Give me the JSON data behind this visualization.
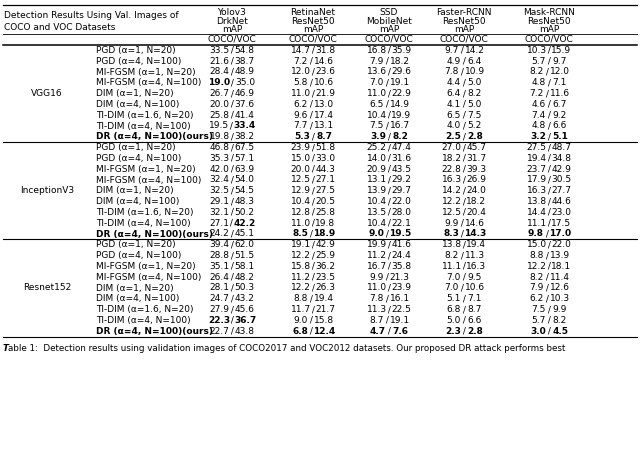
{
  "col_headers_lines": [
    [
      "Yolov3",
      "DrkNet",
      "mAP"
    ],
    [
      "RetinaNet",
      "ResNet50",
      "mAP"
    ],
    [
      "SSD",
      "MobileNet",
      "mAP"
    ],
    [
      "Faster-RCNN",
      "ResNet50",
      "mAP"
    ],
    [
      "Mask-RCNN",
      "ResNet50",
      "mAP"
    ]
  ],
  "sections": [
    {
      "model": "VGG16",
      "rows": [
        {
          "method": "PGD (α=1, N=20)",
          "vals": [
            "33.5 / 54.8",
            "14.7 / 31.8",
            "16.8 / 35.9",
            "9.7 / 14.2",
            "10.3 / 15.9"
          ],
          "bold_left": [
            false,
            false,
            false,
            false,
            false
          ],
          "bold_right": [
            false,
            false,
            false,
            false,
            false
          ],
          "ours": false
        },
        {
          "method": "PGD (α=4, N=100)",
          "vals": [
            "21.6 / 38.7",
            "7.2 / 14.6",
            "7.9 / 18.2",
            "4.9 / 6.4",
            "5.7 / 9.7"
          ],
          "bold_left": [
            false,
            false,
            false,
            false,
            false
          ],
          "bold_right": [
            false,
            false,
            false,
            false,
            false
          ],
          "ours": false
        },
        {
          "method": "MI-FGSM (α=1, N=20)",
          "vals": [
            "28.4 / 48.9",
            "12.0 / 23.6",
            "13.6 / 29.6",
            "7.8 / 10.9",
            "8.2 / 12.0"
          ],
          "bold_left": [
            false,
            false,
            false,
            false,
            false
          ],
          "bold_right": [
            false,
            false,
            false,
            false,
            false
          ],
          "ours": false
        },
        {
          "method": "MI-FGSM (α=4, N=100)",
          "vals": [
            "19.0 / 35.0",
            "5.8 / 10.6",
            "7.0 / 19.1",
            "4.4 / 5.0",
            "4.8 / 7.1"
          ],
          "bold_left": [
            true,
            false,
            false,
            false,
            false
          ],
          "bold_right": [
            false,
            false,
            false,
            false,
            false
          ],
          "ours": false
        },
        {
          "method": "DIM (α=1, N=20)",
          "vals": [
            "26.7 / 46.9",
            "11.0 / 21.9",
            "11.0 / 22.9",
            "6.4 / 8.2",
            "7.2 / 11.6"
          ],
          "bold_left": [
            false,
            false,
            false,
            false,
            false
          ],
          "bold_right": [
            false,
            false,
            false,
            false,
            false
          ],
          "ours": false
        },
        {
          "method": "DIM (α=4, N=100)",
          "vals": [
            "20.0 / 37.6",
            "6.2 / 13.0",
            "6.5 / 14.9",
            "4.1 / 5.0",
            "4.6 / 6.7"
          ],
          "bold_left": [
            false,
            false,
            false,
            false,
            false
          ],
          "bold_right": [
            false,
            false,
            false,
            false,
            false
          ],
          "ours": false
        },
        {
          "method": "TI-DIM (α=1.6, N=20)",
          "vals": [
            "25.8 / 41.4",
            "9.6 / 17.4",
            "10.4 / 19.9",
            "6.5 / 7.5",
            "7.4 / 9.2"
          ],
          "bold_left": [
            false,
            false,
            false,
            false,
            false
          ],
          "bold_right": [
            false,
            false,
            false,
            false,
            false
          ],
          "ours": false
        },
        {
          "method": "TI-DIM (α=4, N=100)",
          "vals": [
            "19.5 / 33.4",
            "7.7 / 13.1",
            "7.5 / 16.7",
            "4.0 / 5.2",
            "4.8 / 6.6"
          ],
          "bold_left": [
            false,
            false,
            false,
            false,
            false
          ],
          "bold_right": [
            true,
            false,
            false,
            false,
            false
          ],
          "ours": false
        },
        {
          "method": "DR (α=4, N=100)(ours)",
          "vals": [
            "19.8 / 38.2",
            "5.3 / 8.7",
            "3.9 / 8.2",
            "2.5 / 2.8",
            "3.2 / 5.1"
          ],
          "bold_left": [
            false,
            true,
            true,
            true,
            true
          ],
          "bold_right": [
            false,
            true,
            true,
            true,
            true
          ],
          "ours": true
        }
      ]
    },
    {
      "model": "InceptionV3",
      "rows": [
        {
          "method": "PGD (α=1, N=20)",
          "vals": [
            "46.8 / 67.5",
            "23.9 / 51.8",
            "25.2 / 47.4",
            "27.0 / 45.7",
            "27.5 / 48.7"
          ],
          "bold_left": [
            false,
            false,
            false,
            false,
            false
          ],
          "bold_right": [
            false,
            false,
            false,
            false,
            false
          ],
          "ours": false
        },
        {
          "method": "PGD (α=4, N=100)",
          "vals": [
            "35.3 / 57.1",
            "15.0 / 33.0",
            "14.0 / 31.6",
            "18.2 / 31.7",
            "19.4 / 34.8"
          ],
          "bold_left": [
            false,
            false,
            false,
            false,
            false
          ],
          "bold_right": [
            false,
            false,
            false,
            false,
            false
          ],
          "ours": false
        },
        {
          "method": "MI-FGSM (α=1, N=20)",
          "vals": [
            "42.0 / 63.9",
            "20.0 / 44.3",
            "20.9 / 43.5",
            "22.8 / 39.3",
            "23.7 / 42.9"
          ],
          "bold_left": [
            false,
            false,
            false,
            false,
            false
          ],
          "bold_right": [
            false,
            false,
            false,
            false,
            false
          ],
          "ours": false
        },
        {
          "method": "MI-FGSM (α=4, N=100)",
          "vals": [
            "32.4 / 54.0",
            "12.5 / 27.1",
            "13.1 / 29.2",
            "16.3 / 26.9",
            "17.9 / 30.5"
          ],
          "bold_left": [
            false,
            false,
            false,
            false,
            false
          ],
          "bold_right": [
            false,
            false,
            false,
            false,
            false
          ],
          "ours": false
        },
        {
          "method": "DIM (α=1, N=20)",
          "vals": [
            "32.5 / 54.5",
            "12.9 / 27.5",
            "13.9 / 29.7",
            "14.2 / 24.0",
            "16.3 / 27.7"
          ],
          "bold_left": [
            false,
            false,
            false,
            false,
            false
          ],
          "bold_right": [
            false,
            false,
            false,
            false,
            false
          ],
          "ours": false
        },
        {
          "method": "DIM (α=4, N=100)",
          "vals": [
            "29.1 / 48.3",
            "10.4 / 20.5",
            "10.4 / 22.0",
            "12.2 / 18.2",
            "13.8 / 44.6"
          ],
          "bold_left": [
            false,
            false,
            false,
            false,
            false
          ],
          "bold_right": [
            false,
            false,
            false,
            false,
            false
          ],
          "ours": false
        },
        {
          "method": "TI-DIM (α=1.6, N=20)",
          "vals": [
            "32.1 / 50.2",
            "12.8 / 25.8",
            "13.5 / 28.0",
            "12.5 / 20.4",
            "14.4 / 23.0"
          ],
          "bold_left": [
            false,
            false,
            false,
            false,
            false
          ],
          "bold_right": [
            false,
            false,
            false,
            false,
            false
          ],
          "ours": false
        },
        {
          "method": "TI-DIM (α=4, N=100)",
          "vals": [
            "27.1 / 42.2",
            "11.0 / 19.8",
            "10.4 / 22.1",
            "9.9 / 14.6",
            "11.1 / 17.5"
          ],
          "bold_left": [
            false,
            false,
            false,
            false,
            false
          ],
          "bold_right": [
            true,
            false,
            false,
            false,
            false
          ],
          "ours": false
        },
        {
          "method": "DR (α=4, N=100)(ours)",
          "vals": [
            "24.2 / 45.1",
            "8.5 / 18.9",
            "9.0 / 19.5",
            "8.3 / 14.3",
            "9.8 / 17.0"
          ],
          "bold_left": [
            false,
            true,
            true,
            true,
            true
          ],
          "bold_right": [
            false,
            true,
            true,
            true,
            true
          ],
          "ours": true
        }
      ]
    },
    {
      "model": "Resnet152",
      "rows": [
        {
          "method": "PGD (α=1, N=20)",
          "vals": [
            "39.4 / 62.0",
            "19.1 / 42.9",
            "19.9 / 41.6",
            "13.8 / 19.4",
            "15.0 / 22.0"
          ],
          "bold_left": [
            false,
            false,
            false,
            false,
            false
          ],
          "bold_right": [
            false,
            false,
            false,
            false,
            false
          ],
          "ours": false
        },
        {
          "method": "PGD (α=4, N=100)",
          "vals": [
            "28.8 / 51.5",
            "12.2 / 25.9",
            "11.2 / 24.4",
            "8.2 / 11.3",
            "8.8 / 13.9"
          ],
          "bold_left": [
            false,
            false,
            false,
            false,
            false
          ],
          "bold_right": [
            false,
            false,
            false,
            false,
            false
          ],
          "ours": false
        },
        {
          "method": "MI-FGSM (α=1, N=20)",
          "vals": [
            "35.1 / 58.1",
            "15.8 / 36.2",
            "16.7 / 35.8",
            "11.1 / 16.3",
            "12.2 / 18.1"
          ],
          "bold_left": [
            false,
            false,
            false,
            false,
            false
          ],
          "bold_right": [
            false,
            false,
            false,
            false,
            false
          ],
          "ours": false
        },
        {
          "method": "MI-FGSM (α=4, N=100)",
          "vals": [
            "26.4 / 48.2",
            "11.2 / 23.5",
            "9.9 / 21.3",
            "7.0 / 9.5",
            "8.2 / 11.4"
          ],
          "bold_left": [
            false,
            false,
            false,
            false,
            false
          ],
          "bold_right": [
            false,
            false,
            false,
            false,
            false
          ],
          "ours": false
        },
        {
          "method": "DIM (α=1, N=20)",
          "vals": [
            "28.1 / 50.3",
            "12.2 / 26.3",
            "11.0 / 23.9",
            "7.0 / 10.6",
            "7.9 / 12.6"
          ],
          "bold_left": [
            false,
            false,
            false,
            false,
            false
          ],
          "bold_right": [
            false,
            false,
            false,
            false,
            false
          ],
          "ours": false
        },
        {
          "method": "DIM (α=4, N=100)",
          "vals": [
            "24.7 / 43.2",
            "8.8 / 19.4",
            "7.8 / 16.1",
            "5.1 / 7.1",
            "6.2 / 10.3"
          ],
          "bold_left": [
            false,
            false,
            false,
            false,
            false
          ],
          "bold_right": [
            false,
            false,
            false,
            false,
            false
          ],
          "ours": false
        },
        {
          "method": "TI-DIM (α=1.6, N=20)",
          "vals": [
            "27.9 / 45.6",
            "11.7 / 21.7",
            "11.3 / 22.5",
            "6.8 / 8.7",
            "7.5 / 9.9"
          ],
          "bold_left": [
            false,
            false,
            false,
            false,
            false
          ],
          "bold_right": [
            false,
            false,
            false,
            false,
            false
          ],
          "ours": false
        },
        {
          "method": "TI-DIM (α=4, N=100)",
          "vals": [
            "22.3 / 36.7",
            "9.0 / 15.8",
            "8.7 / 19.1",
            "5.0 / 6.6",
            "5.7 / 8.2"
          ],
          "bold_left": [
            true,
            false,
            false,
            false,
            false
          ],
          "bold_right": [
            true,
            false,
            false,
            false,
            false
          ],
          "ours": false
        },
        {
          "method": "DR (α=4, N=100)(ours)",
          "vals": [
            "22.7 / 43.8",
            "6.8 / 12.4",
            "4.7 / 7.6",
            "2.3 / 2.8",
            "3.0 / 4.5"
          ],
          "bold_left": [
            false,
            true,
            true,
            true,
            true
          ],
          "bold_right": [
            false,
            true,
            true,
            true,
            true
          ],
          "ours": true
        }
      ]
    }
  ],
  "caption_normal": "able 1:  Detection results using validation images of COCO2017 and VOC2012 datasets. Our proposed DR attack performs best",
  "caption_bold": "T"
}
